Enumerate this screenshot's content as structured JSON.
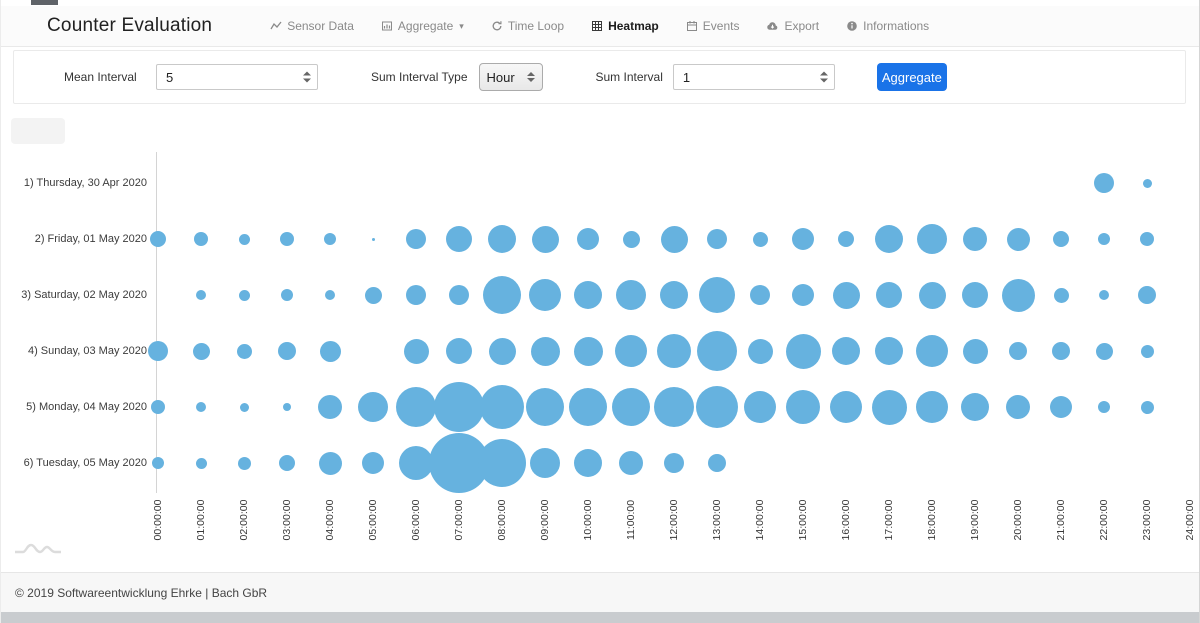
{
  "header": {
    "brand": "Counter Evaluation",
    "nav": [
      {
        "label": "Sensor Data",
        "icon": "line-chart-icon",
        "active": false,
        "caret": false
      },
      {
        "label": "Aggregate",
        "icon": "aggregate-chart-icon",
        "active": false,
        "caret": true
      },
      {
        "label": "Time Loop",
        "icon": "time-loop-icon",
        "active": false,
        "caret": false
      },
      {
        "label": "Heatmap",
        "icon": "heatmap-grid-icon",
        "active": true,
        "caret": false
      },
      {
        "label": "Events",
        "icon": "events-calendar-icon",
        "active": false,
        "caret": false
      },
      {
        "label": "Export",
        "icon": "export-cloud-icon",
        "active": false,
        "caret": false
      },
      {
        "label": "Informations",
        "icon": "info-icon",
        "active": false,
        "caret": false
      }
    ]
  },
  "form": {
    "mean_interval_label": "Mean Interval",
    "mean_interval_value": "5",
    "sum_interval_type_label": "Sum Interval Type",
    "sum_interval_type_value": "Hour",
    "sum_interval_label": "Sum Interval",
    "sum_interval_value": "1",
    "aggregate_button": "Aggregate"
  },
  "chart_data": {
    "type": "bubble",
    "note": "punchcard-style bubble chart: rows are days, columns are hours; values encoded as bubble radius in px (estimated from pixels, no numeric labels shown)",
    "bubble_color": "#66B2DF",
    "x_ticks": [
      "00:00:00",
      "01:00:00",
      "02:00:00",
      "03:00:00",
      "04:00:00",
      "05:00:00",
      "06:00:00",
      "07:00:00",
      "08:00:00",
      "09:00:00",
      "10:00:00",
      "11:00:00",
      "12:00:00",
      "13:00:00",
      "14:00:00",
      "15:00:00",
      "16:00:00",
      "17:00:00",
      "18:00:00",
      "19:00:00",
      "20:00:00",
      "21:00:00",
      "22:00:00",
      "23:00:00",
      "24:00:00"
    ],
    "rows": [
      {
        "label": "1) Thursday, 30 Apr 2020",
        "radii": [
          0,
          0,
          0,
          0,
          0,
          0,
          0,
          0,
          0,
          0,
          0,
          0,
          0,
          0,
          0,
          0,
          0,
          0,
          0,
          0,
          0,
          0,
          10,
          4.5
        ]
      },
      {
        "label": "2) Friday, 01 May 2020",
        "radii": [
          8,
          7,
          5.5,
          7,
          6,
          1.5,
          10,
          13,
          14,
          13.5,
          11,
          8.5,
          13.5,
          10,
          7.5,
          11,
          8,
          14,
          15,
          12,
          11.5,
          8,
          6,
          7
        ]
      },
      {
        "label": "3) Saturday, 02 May 2020",
        "radii": [
          0,
          5,
          5.5,
          6,
          5,
          8.5,
          10,
          10,
          19,
          16,
          14,
          15,
          14,
          18,
          10,
          11,
          13.5,
          13,
          13.5,
          13,
          16.5,
          7.5,
          5,
          9
        ]
      },
      {
        "label": "4) Sunday, 03 May 2020",
        "radii": [
          10,
          8.5,
          7.5,
          9,
          10.5,
          0,
          12.5,
          13,
          13.5,
          14.5,
          14.5,
          16,
          17,
          20,
          12.5,
          17.5,
          14,
          14,
          16,
          12.5,
          9,
          9,
          8.5,
          6.5
        ]
      },
      {
        "label": "5) Monday, 04 May 2020",
        "radii": [
          7,
          5,
          4.5,
          4,
          12,
          15,
          20,
          25,
          22,
          19,
          19,
          19,
          20,
          21,
          16,
          17,
          16,
          17.5,
          16,
          14,
          12,
          11,
          6,
          6.5
        ]
      },
      {
        "label": "6) Tuesday, 05 May 2020",
        "radii": [
          6,
          5.5,
          6.5,
          8,
          11.5,
          11,
          17,
          30,
          24,
          15,
          14,
          12,
          10,
          9,
          0,
          0,
          0,
          0,
          0,
          0,
          0,
          0,
          0,
          0
        ]
      }
    ]
  },
  "footer": {
    "copyright": "© 2019 Softwareentwicklung Ehrke | Bach GbR"
  },
  "colors": {
    "accent_button": "#1A73E8",
    "bubble": "#66B2DF"
  }
}
